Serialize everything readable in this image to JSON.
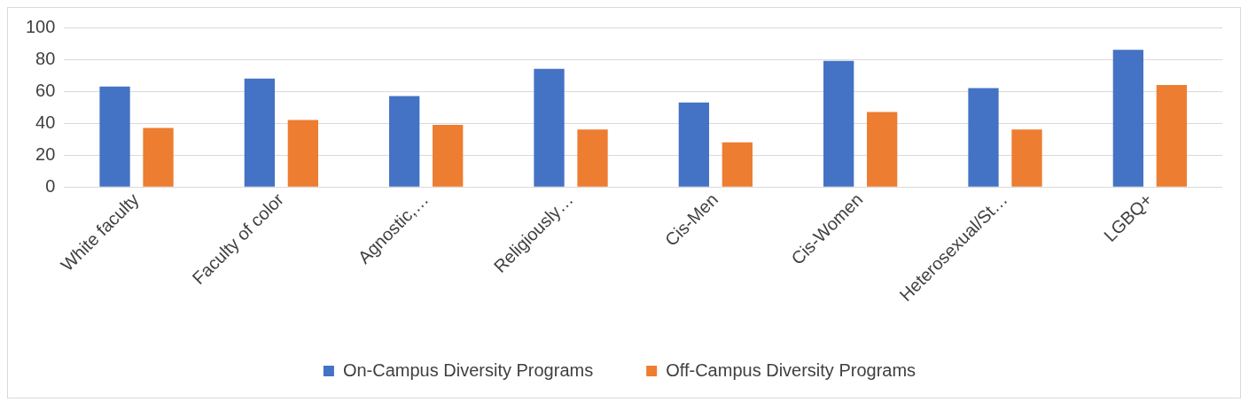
{
  "chart_data": {
    "type": "bar",
    "categories": [
      "White faculty",
      "Faculty of color",
      "Agnostic,…",
      "Religiously…",
      "Cis-Men",
      "Cis-Women",
      "Heterosexual/St…",
      "LGBQ+"
    ],
    "series": [
      {
        "name": "On-Campus Diversity Programs",
        "color": "#4472c4",
        "values": [
          63,
          68,
          57,
          74,
          53,
          79,
          62,
          86
        ]
      },
      {
        "name": "Off-Campus Diversity Programs",
        "color": "#ed7d31",
        "values": [
          37,
          42,
          39,
          36,
          28,
          47,
          36,
          64
        ]
      }
    ],
    "ylim": [
      0,
      100
    ],
    "yticks": [
      0,
      20,
      40,
      60,
      80,
      100
    ],
    "grid": "y",
    "legend": "bottom"
  }
}
